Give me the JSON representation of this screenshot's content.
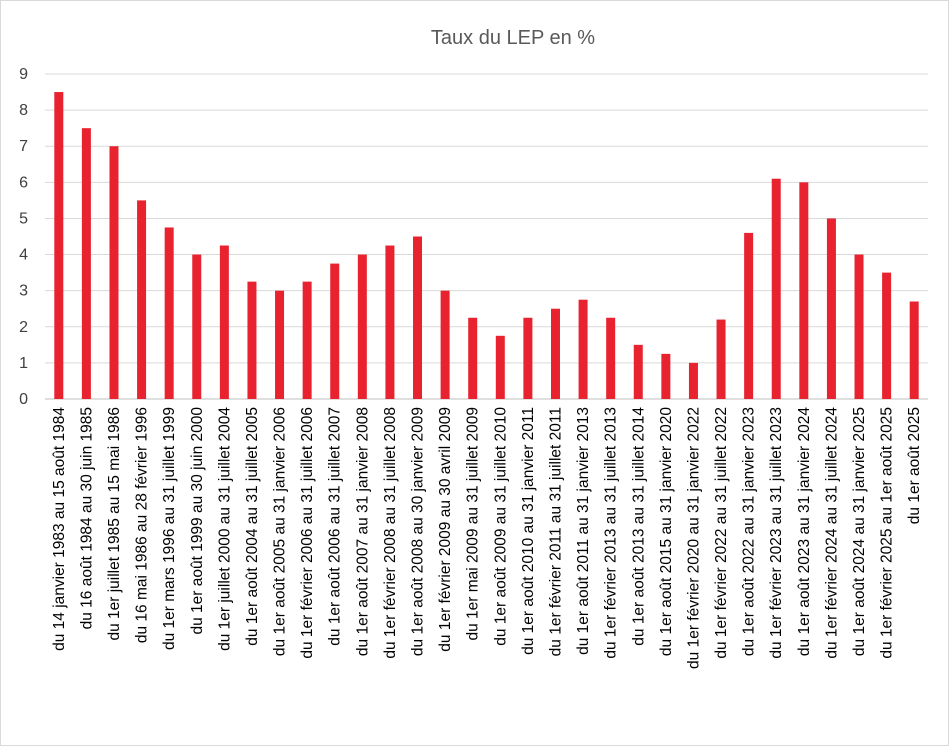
{
  "chart_data": {
    "type": "bar",
    "title": "Taux du LEP en %",
    "xlabel": "",
    "ylabel": "",
    "ylim": [
      0,
      9
    ],
    "yticks": [
      0,
      1,
      2,
      3,
      4,
      5,
      6,
      7,
      8,
      9
    ],
    "grid": true,
    "legend": "none",
    "color": "#e8222e",
    "categories": [
      "du 14 janvier 1983 au 15 août 1984",
      "du 16 août 1984 au 30 juin 1985",
      "du 1er juillet 1985 au 15 mai 1986",
      "du 16 mai 1986 au 28 février 1996",
      "du 1er mars 1996 au 31 juillet 1999",
      "du 1er août 1999 au 30 juin 2000",
      "du 1er juillet 2000 au 31 juillet 2004",
      "du 1er août 2004 au 31 juillet 2005",
      "du 1er août 2005 au 31 janvier 2006",
      "du 1er février 2006 au 31 juillet 2006",
      "du 1er août 2006 au 31 juillet 2007",
      "du 1er août 2007 au 31 janvier 2008",
      "du 1er février 2008 au 31 juillet 2008",
      "du 1er août 2008 au 30 janvier 2009",
      "du 1er février 2009 au 30 avril 2009",
      "du 1er mai 2009 au 31 juillet 2009",
      "du 1er août 2009 au 31 juillet 2010",
      "du 1er août 2010 au 31 janvier 2011",
      "du 1er février 2011 au 31 juillet 2011",
      "du 1er août 2011 au 31 janvier 2013",
      "du 1er février 2013 au 31 juillet 2013",
      "du 1er août 2013 au 31 juillet 2014",
      "du 1er août 2015 au 31 janvier 2020",
      "du 1er février 2020 au 31 janvier 2022",
      "du 1er février 2022 au 31 juillet 2022",
      "du 1er août 2022 au 31 janvier 2023",
      "du 1er février 2023 au 31 juillet 2023",
      "du 1er août 2023 au  31 janvier 2024",
      "du 1er février 2024 au  31 juillet 2024",
      "du 1er août 2024 au  31 janvier 2025",
      "du 1er février 2025 au 1er août 2025",
      "du 1er août 2025"
    ],
    "values": [
      8.5,
      7.5,
      7,
      5.5,
      4.75,
      4,
      4.25,
      3.25,
      3,
      3.25,
      3.75,
      4,
      4.25,
      4.5,
      3,
      2.25,
      1.75,
      2.25,
      2.5,
      2.75,
      2.25,
      1.5,
      1.25,
      1,
      2.2,
      4.6,
      6.1,
      6,
      5,
      4,
      3.5,
      2.7
    ]
  }
}
